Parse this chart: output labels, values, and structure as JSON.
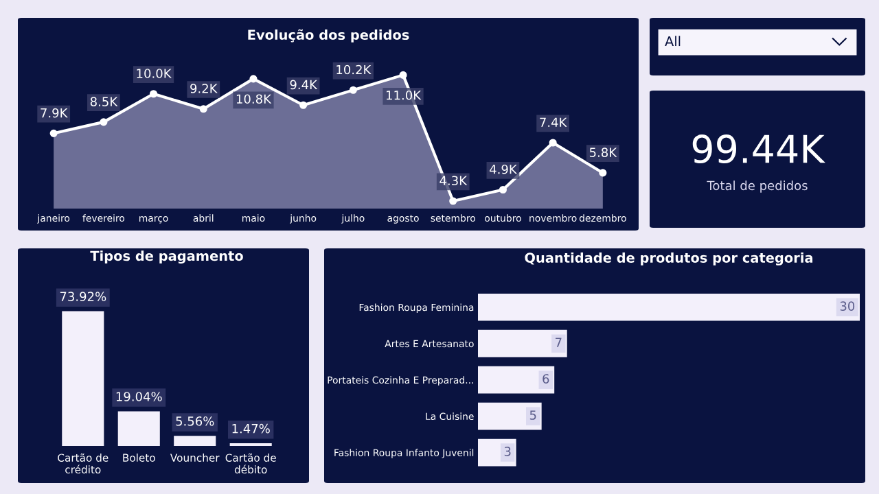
{
  "chart_data": [
    {
      "type": "area",
      "title": "Evolução dos pedidos",
      "categories": [
        "janeiro",
        "fevereiro",
        "março",
        "abril",
        "maio",
        "junho",
        "julho",
        "agosto",
        "setembro",
        "outubro",
        "novembro",
        "dezembro"
      ],
      "series": [
        {
          "color": "#ffffff",
          "values": [
            7.9,
            8.5,
            10.0,
            9.2,
            10.8,
            9.4,
            10.2,
            11.0,
            4.3,
            4.9,
            7.4,
            5.8
          ],
          "value_labels": [
            "7.9K",
            "8.5K",
            "10.0K",
            "9.2K",
            "10.8K",
            "9.4K",
            "10.2K",
            "11.0K",
            "4.3K",
            "4.9K",
            "7.4K",
            "5.8K"
          ]
        }
      ],
      "marker": "circle"
    },
    {
      "type": "other",
      "annotations": [
        "All"
      ]
    },
    {
      "type": "other",
      "annotations": [
        "99.44K",
        "Total de pedidos"
      ]
    },
    {
      "type": "bar",
      "title": "Tipos de pagamento",
      "categories": [
        "Cartão de crédito",
        "Boleto",
        "Vouncher",
        "Cartão de débito"
      ],
      "values": [
        73.92,
        19.04,
        5.56,
        1.47
      ],
      "color": "#f3f0fb",
      "value_labels": [
        "73.92%",
        "19.04%",
        "5.56%",
        "1.47%"
      ]
    },
    {
      "type": "bar",
      "orientation": "horizontal",
      "title": "Quantidade de produtos por categoria",
      "categories": [
        "Fashion Roupa Feminina",
        "Artes E Artesanato",
        "Portateis Cozinha E Preparad...",
        "La Cuisine",
        "Fashion Roupa Infanto Juvenil"
      ],
      "values": [
        30,
        7,
        6,
        5,
        3
      ],
      "color": "#f3f0fb",
      "data_labels": true
    }
  ]
}
